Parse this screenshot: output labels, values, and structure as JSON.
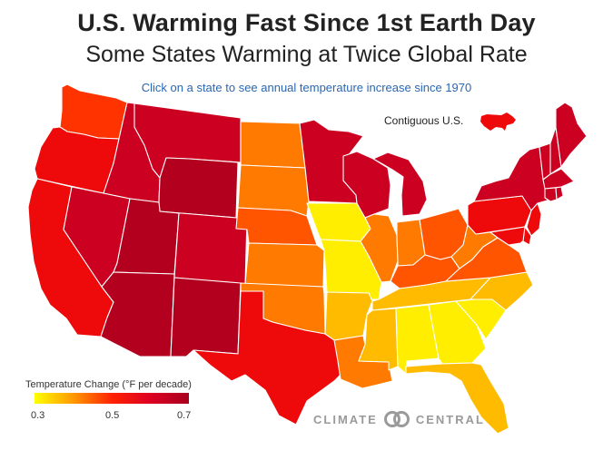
{
  "header": {
    "title": "U.S. Warming Fast Since 1st Earth Day",
    "subtitle": "Some States Warming at Twice Global Rate",
    "instruction": "Click on a state to see annual temperature increase since 1970"
  },
  "conus": {
    "label": "Contiguous U.S."
  },
  "legend": {
    "title": "Temperature Change (°F per decade)",
    "ticks": [
      "0.3",
      "0.5",
      "0.7"
    ],
    "gradient": [
      "#ffff00",
      "#ff9900",
      "#ff2200",
      "#dd0022",
      "#a8001e"
    ]
  },
  "brand": {
    "left": "CLIMATE",
    "right": "CENTRAL",
    "logo_icon": "linked-circles-icon"
  },
  "colors": {
    "darkest": "#b2001e",
    "dark_red": "#cc0020",
    "red": "#ee0a0a",
    "red_orange": "#ff3300",
    "orange_red": "#ff5500",
    "orange": "#ff7a00",
    "light_orange": "#ffa000",
    "amber": "#ffbb00",
    "yellow_orange": "#ffd500",
    "yellow": "#ffee00"
  },
  "states": [
    {
      "id": "WA",
      "color": "#ff3300"
    },
    {
      "id": "OR",
      "color": "#ee0a0a"
    },
    {
      "id": "CA",
      "color": "#ee0a0a"
    },
    {
      "id": "ID",
      "color": "#cc0020"
    },
    {
      "id": "NV",
      "color": "#cc0020"
    },
    {
      "id": "MT",
      "color": "#cc0020"
    },
    {
      "id": "WY",
      "color": "#b2001e"
    },
    {
      "id": "UT",
      "color": "#b2001e"
    },
    {
      "id": "CO",
      "color": "#cc0020"
    },
    {
      "id": "AZ",
      "color": "#b2001e"
    },
    {
      "id": "NM",
      "color": "#b2001e"
    },
    {
      "id": "ND",
      "color": "#ff7a00"
    },
    {
      "id": "SD",
      "color": "#ff7a00"
    },
    {
      "id": "NE",
      "color": "#ff5500"
    },
    {
      "id": "KS",
      "color": "#ff7a00"
    },
    {
      "id": "OK",
      "color": "#ff7a00"
    },
    {
      "id": "TX",
      "color": "#ee0a0a"
    },
    {
      "id": "MN",
      "color": "#cc0020"
    },
    {
      "id": "IA",
      "color": "#ffee00"
    },
    {
      "id": "MO",
      "color": "#ffee00"
    },
    {
      "id": "AR",
      "color": "#ffbb00"
    },
    {
      "id": "LA",
      "color": "#ff7a00"
    },
    {
      "id": "WI",
      "color": "#cc0020"
    },
    {
      "id": "IL",
      "color": "#ff7a00"
    },
    {
      "id": "MI",
      "color": "#cc0020"
    },
    {
      "id": "IN",
      "color": "#ff7a00"
    },
    {
      "id": "OH",
      "color": "#ff5500"
    },
    {
      "id": "KY",
      "color": "#ff5500"
    },
    {
      "id": "TN",
      "color": "#ffbb00"
    },
    {
      "id": "MS",
      "color": "#ffbb00"
    },
    {
      "id": "AL",
      "color": "#ffee00"
    },
    {
      "id": "GA",
      "color": "#ffee00"
    },
    {
      "id": "FL",
      "color": "#ffbb00"
    },
    {
      "id": "SC",
      "color": "#ffee00"
    },
    {
      "id": "NC",
      "color": "#ffbb00"
    },
    {
      "id": "VA",
      "color": "#ff5500"
    },
    {
      "id": "WV",
      "color": "#ff7a00"
    },
    {
      "id": "PA",
      "color": "#ee0a0a"
    },
    {
      "id": "NY",
      "color": "#cc0020"
    },
    {
      "id": "NJ",
      "color": "#ee0a0a"
    },
    {
      "id": "MD",
      "color": "#ee0a0a"
    },
    {
      "id": "DE",
      "color": "#ee0a0a"
    },
    {
      "id": "VT",
      "color": "#cc0020"
    },
    {
      "id": "NH",
      "color": "#cc0020"
    },
    {
      "id": "ME",
      "color": "#cc0020"
    },
    {
      "id": "MA",
      "color": "#cc0020"
    },
    {
      "id": "CT",
      "color": "#cc0020"
    },
    {
      "id": "RI",
      "color": "#cc0020"
    }
  ]
}
